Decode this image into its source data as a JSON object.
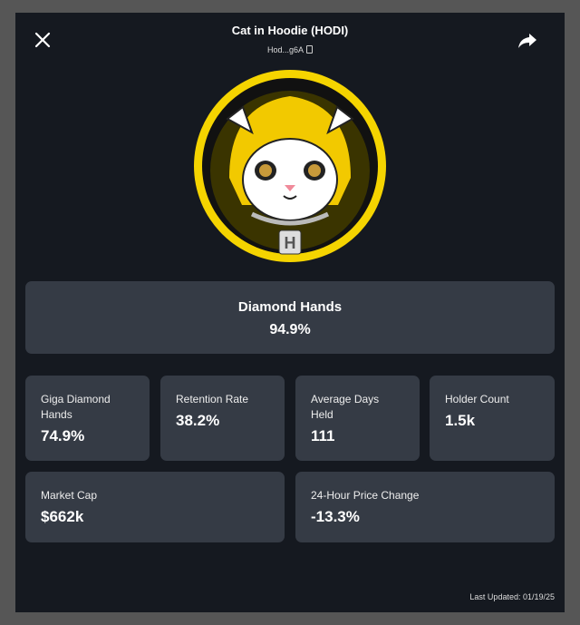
{
  "header": {
    "title": "Cat in Hoodie (HODI)",
    "address": "Hod...g6A",
    "close_icon": "close-icon",
    "share_icon": "share-icon",
    "copy_icon": "copy-icon"
  },
  "logo": {
    "alt": "Cat in hoodie with H chain",
    "colors": {
      "ring": "#f5d400",
      "hood": "#f2c900"
    }
  },
  "diamond_hands": {
    "label": "Diamond Hands",
    "value": "94.9%"
  },
  "stats": [
    {
      "label": "Giga Diamond Hands",
      "value": "74.9%"
    },
    {
      "label": "Retention Rate",
      "value": "38.2%"
    },
    {
      "label": "Average Days Held",
      "value": "111"
    },
    {
      "label": "Holder Count",
      "value": "1.5k"
    },
    {
      "label": "Market Cap",
      "value": "$662k"
    },
    {
      "label": "24-Hour Price Change",
      "value": "-13.3%"
    }
  ],
  "footer": {
    "last_updated": "Last Updated: 01/19/25"
  }
}
